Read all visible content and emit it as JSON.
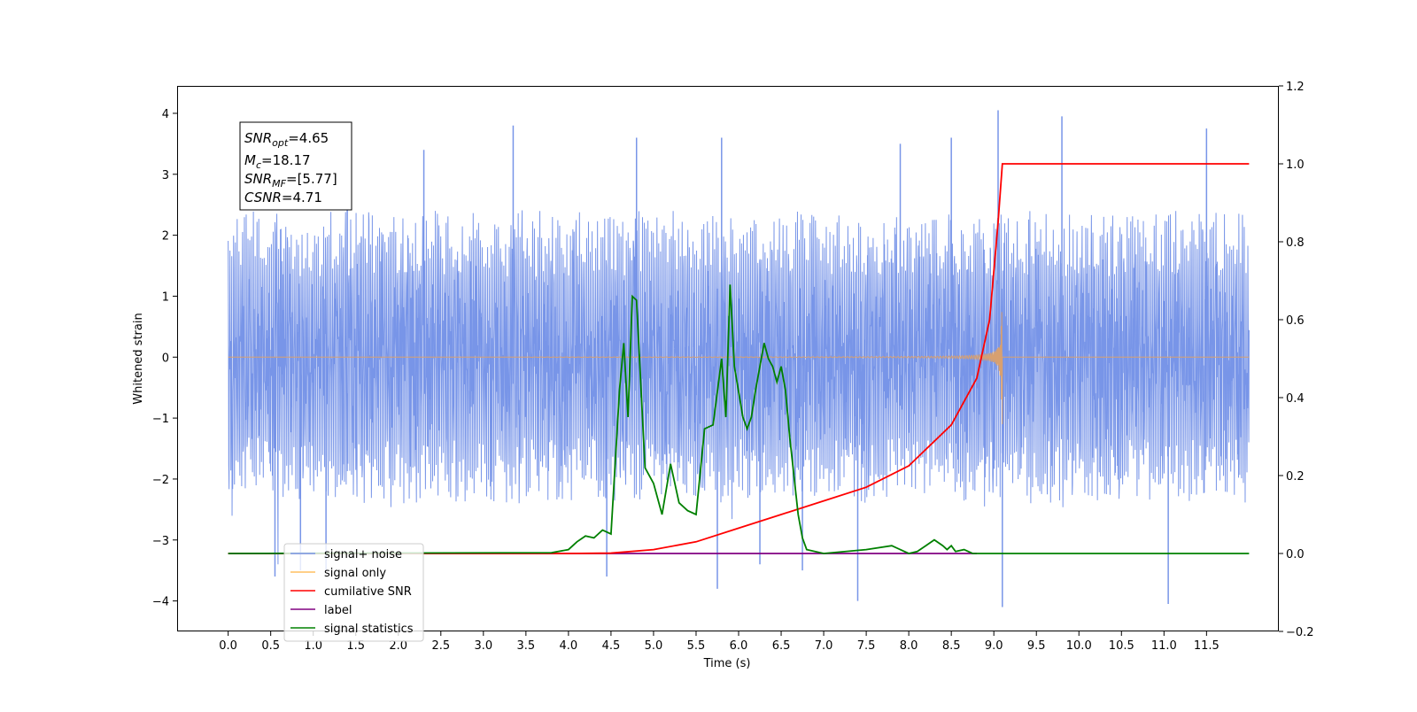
{
  "chart_data": {
    "type": "line",
    "xlabel": "Time (s)",
    "ylabel": "Whitened strain",
    "xlim": [
      -0.6,
      12.35
    ],
    "ylim": [
      -4.5,
      4.45
    ],
    "y2lim": [
      -0.2,
      1.2
    ],
    "x_ticks": [
      "0.0",
      "0.5",
      "1.0",
      "1.5",
      "2.0",
      "2.5",
      "3.0",
      "3.5",
      "4.0",
      "4.5",
      "5.0",
      "5.5",
      "6.0",
      "6.5",
      "7.0",
      "7.5",
      "8.0",
      "8.5",
      "9.0",
      "9.5",
      "10.0",
      "10.5",
      "11.0",
      "11.5"
    ],
    "y_ticks": [
      "4",
      "3",
      "2",
      "1",
      "0",
      "−1",
      "−2",
      "−3",
      "−4"
    ],
    "y2_ticks": [
      "1.2",
      "1.0",
      "0.8",
      "0.6",
      "0.4",
      "0.2",
      "0.0",
      "−0.2"
    ],
    "legend_position": "lower-left",
    "annotation": {
      "snr_opt": {
        "sym": "SNR",
        "sub": "opt",
        "val": "=4.65"
      },
      "mc": {
        "sym": "M",
        "sub": "c",
        "val": "=18.17"
      },
      "snr_mf": {
        "sym": "SNR",
        "sub": "MF",
        "val": "=[5.77]"
      },
      "csnr": {
        "sym": "CSNR",
        "sub": "",
        "val": "=4.71"
      }
    },
    "series": [
      {
        "name": "signal+ noise",
        "axis": "left",
        "color": "#7895e8",
        "kind": "noise",
        "x_range": [
          0.0,
          12.0
        ],
        "typical_band": [
          -2.4,
          2.4
        ],
        "peaks_x": [
          0.55,
          0.85,
          1.15,
          1.4,
          2.3,
          3.35,
          4.45,
          4.8,
          5.75,
          5.8,
          6.25,
          6.75,
          7.4,
          7.9,
          8.5,
          9.05,
          9.1,
          9.8,
          11.05,
          11.5
        ],
        "peaks_y": [
          -3.6,
          -3.5,
          -3.5,
          3.6,
          3.4,
          3.8,
          -3.6,
          3.6,
          -3.8,
          3.6,
          -3.4,
          -3.5,
          -4.0,
          3.5,
          3.6,
          4.05,
          -4.1,
          3.95,
          -4.05,
          3.75
        ]
      },
      {
        "name": "signal only",
        "axis": "left",
        "color": "#d8a070",
        "kind": "chirp",
        "x_range": [
          0.0,
          12.0
        ],
        "merger_x": 9.1,
        "peak_amplitude": 0.88
      },
      {
        "name": "cumilative SNR",
        "axis": "right",
        "color": "#ff0000",
        "x": [
          0.0,
          4.0,
          4.5,
          5.0,
          5.5,
          6.0,
          6.5,
          7.0,
          7.5,
          8.0,
          8.5,
          8.8,
          8.95,
          9.05,
          9.1,
          12.0
        ],
        "y": [
          0.0,
          0.0,
          0.001,
          0.01,
          0.03,
          0.065,
          0.1,
          0.135,
          0.17,
          0.225,
          0.33,
          0.45,
          0.6,
          0.85,
          1.0,
          1.0
        ]
      },
      {
        "name": "label",
        "axis": "right",
        "color": "#800080",
        "x": [
          0.0,
          8.8
        ],
        "y": [
          0.0,
          0.0
        ]
      },
      {
        "name": "signal statistics",
        "axis": "right",
        "color": "#008000",
        "x": [
          0.0,
          3.8,
          4.0,
          4.1,
          4.2,
          4.3,
          4.4,
          4.5,
          4.6,
          4.65,
          4.7,
          4.75,
          4.8,
          4.9,
          5.0,
          5.1,
          5.2,
          5.3,
          5.4,
          5.5,
          5.6,
          5.7,
          5.8,
          5.85,
          5.9,
          5.95,
          6.05,
          6.1,
          6.15,
          6.2,
          6.3,
          6.35,
          6.4,
          6.45,
          6.5,
          6.55,
          6.6,
          6.7,
          6.75,
          6.8,
          7.0,
          7.5,
          7.8,
          8.0,
          8.1,
          8.2,
          8.3,
          8.4,
          8.45,
          8.5,
          8.55,
          8.65,
          8.75,
          12.0
        ],
        "y": [
          0.0,
          0.002,
          0.01,
          0.03,
          0.045,
          0.04,
          0.06,
          0.05,
          0.42,
          0.54,
          0.35,
          0.66,
          0.65,
          0.22,
          0.18,
          0.1,
          0.23,
          0.13,
          0.11,
          0.1,
          0.32,
          0.33,
          0.5,
          0.35,
          0.69,
          0.48,
          0.35,
          0.32,
          0.35,
          0.42,
          0.54,
          0.5,
          0.48,
          0.44,
          0.48,
          0.42,
          0.3,
          0.1,
          0.04,
          0.01,
          0.0,
          0.01,
          0.02,
          0.0,
          0.005,
          0.02,
          0.035,
          0.02,
          0.01,
          0.02,
          0.005,
          0.01,
          0.0,
          0.0
        ]
      }
    ]
  }
}
